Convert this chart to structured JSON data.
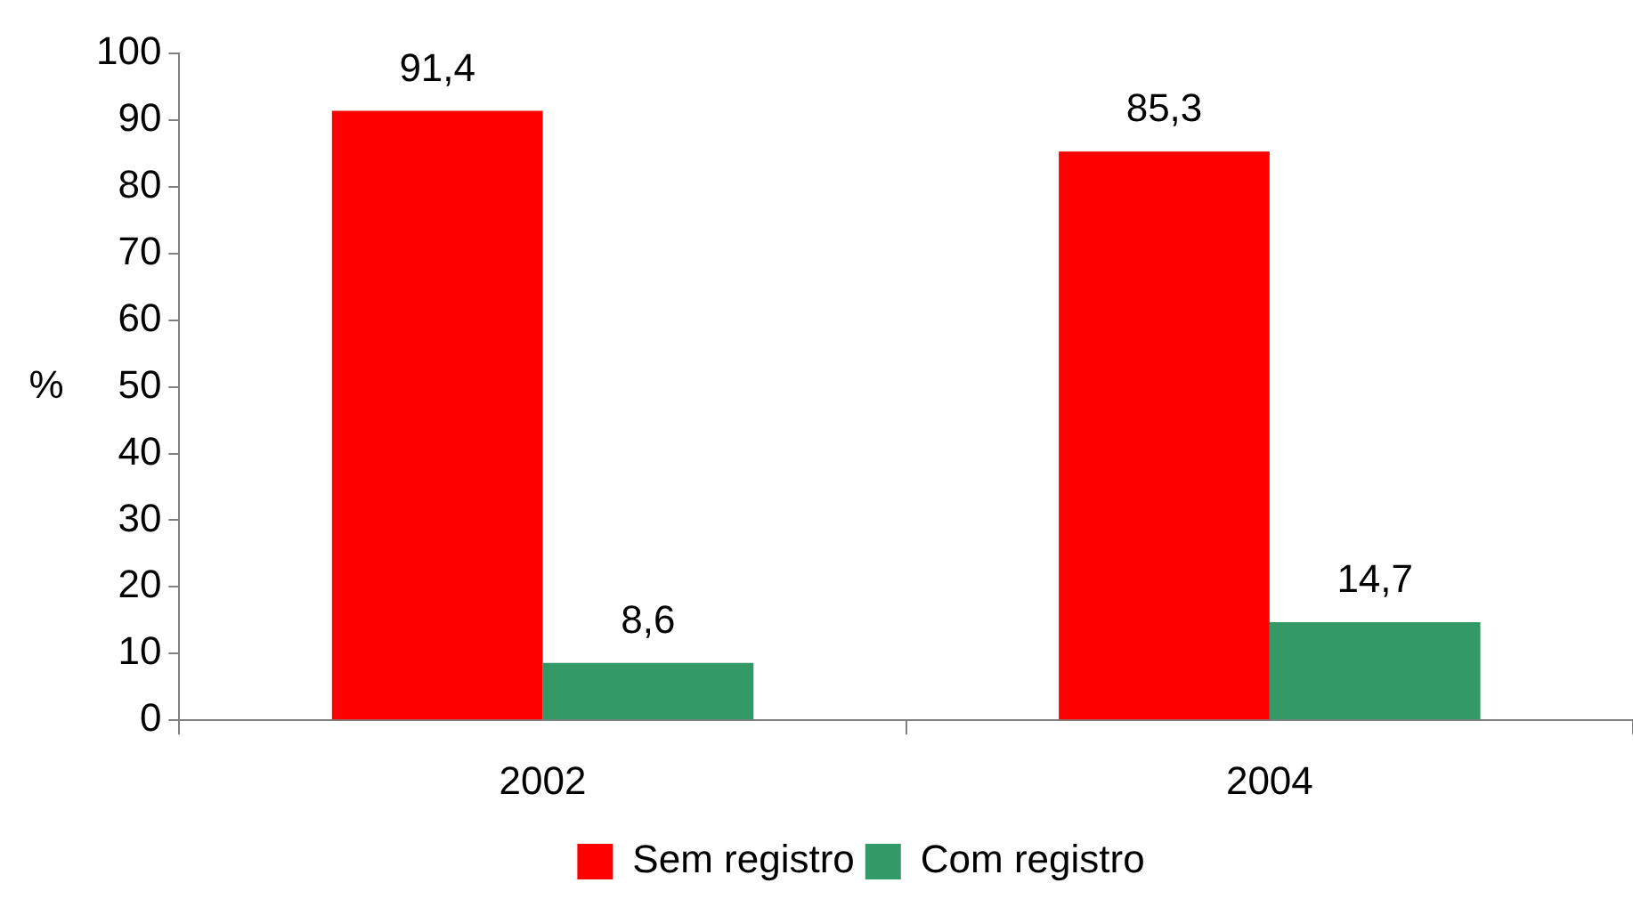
{
  "chart_data": {
    "type": "bar",
    "ylabel": "%",
    "categories": [
      "2002",
      "2004"
    ],
    "series": [
      {
        "name": "Sem registro",
        "color": "#ff0000",
        "values": [
          91.4,
          85.3
        ],
        "value_labels": [
          "91,4",
          "85,3"
        ]
      },
      {
        "name": "Com registro",
        "color": "#339966",
        "values": [
          8.6,
          14.7
        ],
        "value_labels": [
          "8,6",
          "14,7"
        ]
      }
    ],
    "ylim": [
      0,
      100
    ],
    "yticks": [
      0,
      10,
      20,
      30,
      40,
      50,
      60,
      70,
      80,
      90,
      100
    ],
    "grid": false,
    "legend": "bottom"
  }
}
